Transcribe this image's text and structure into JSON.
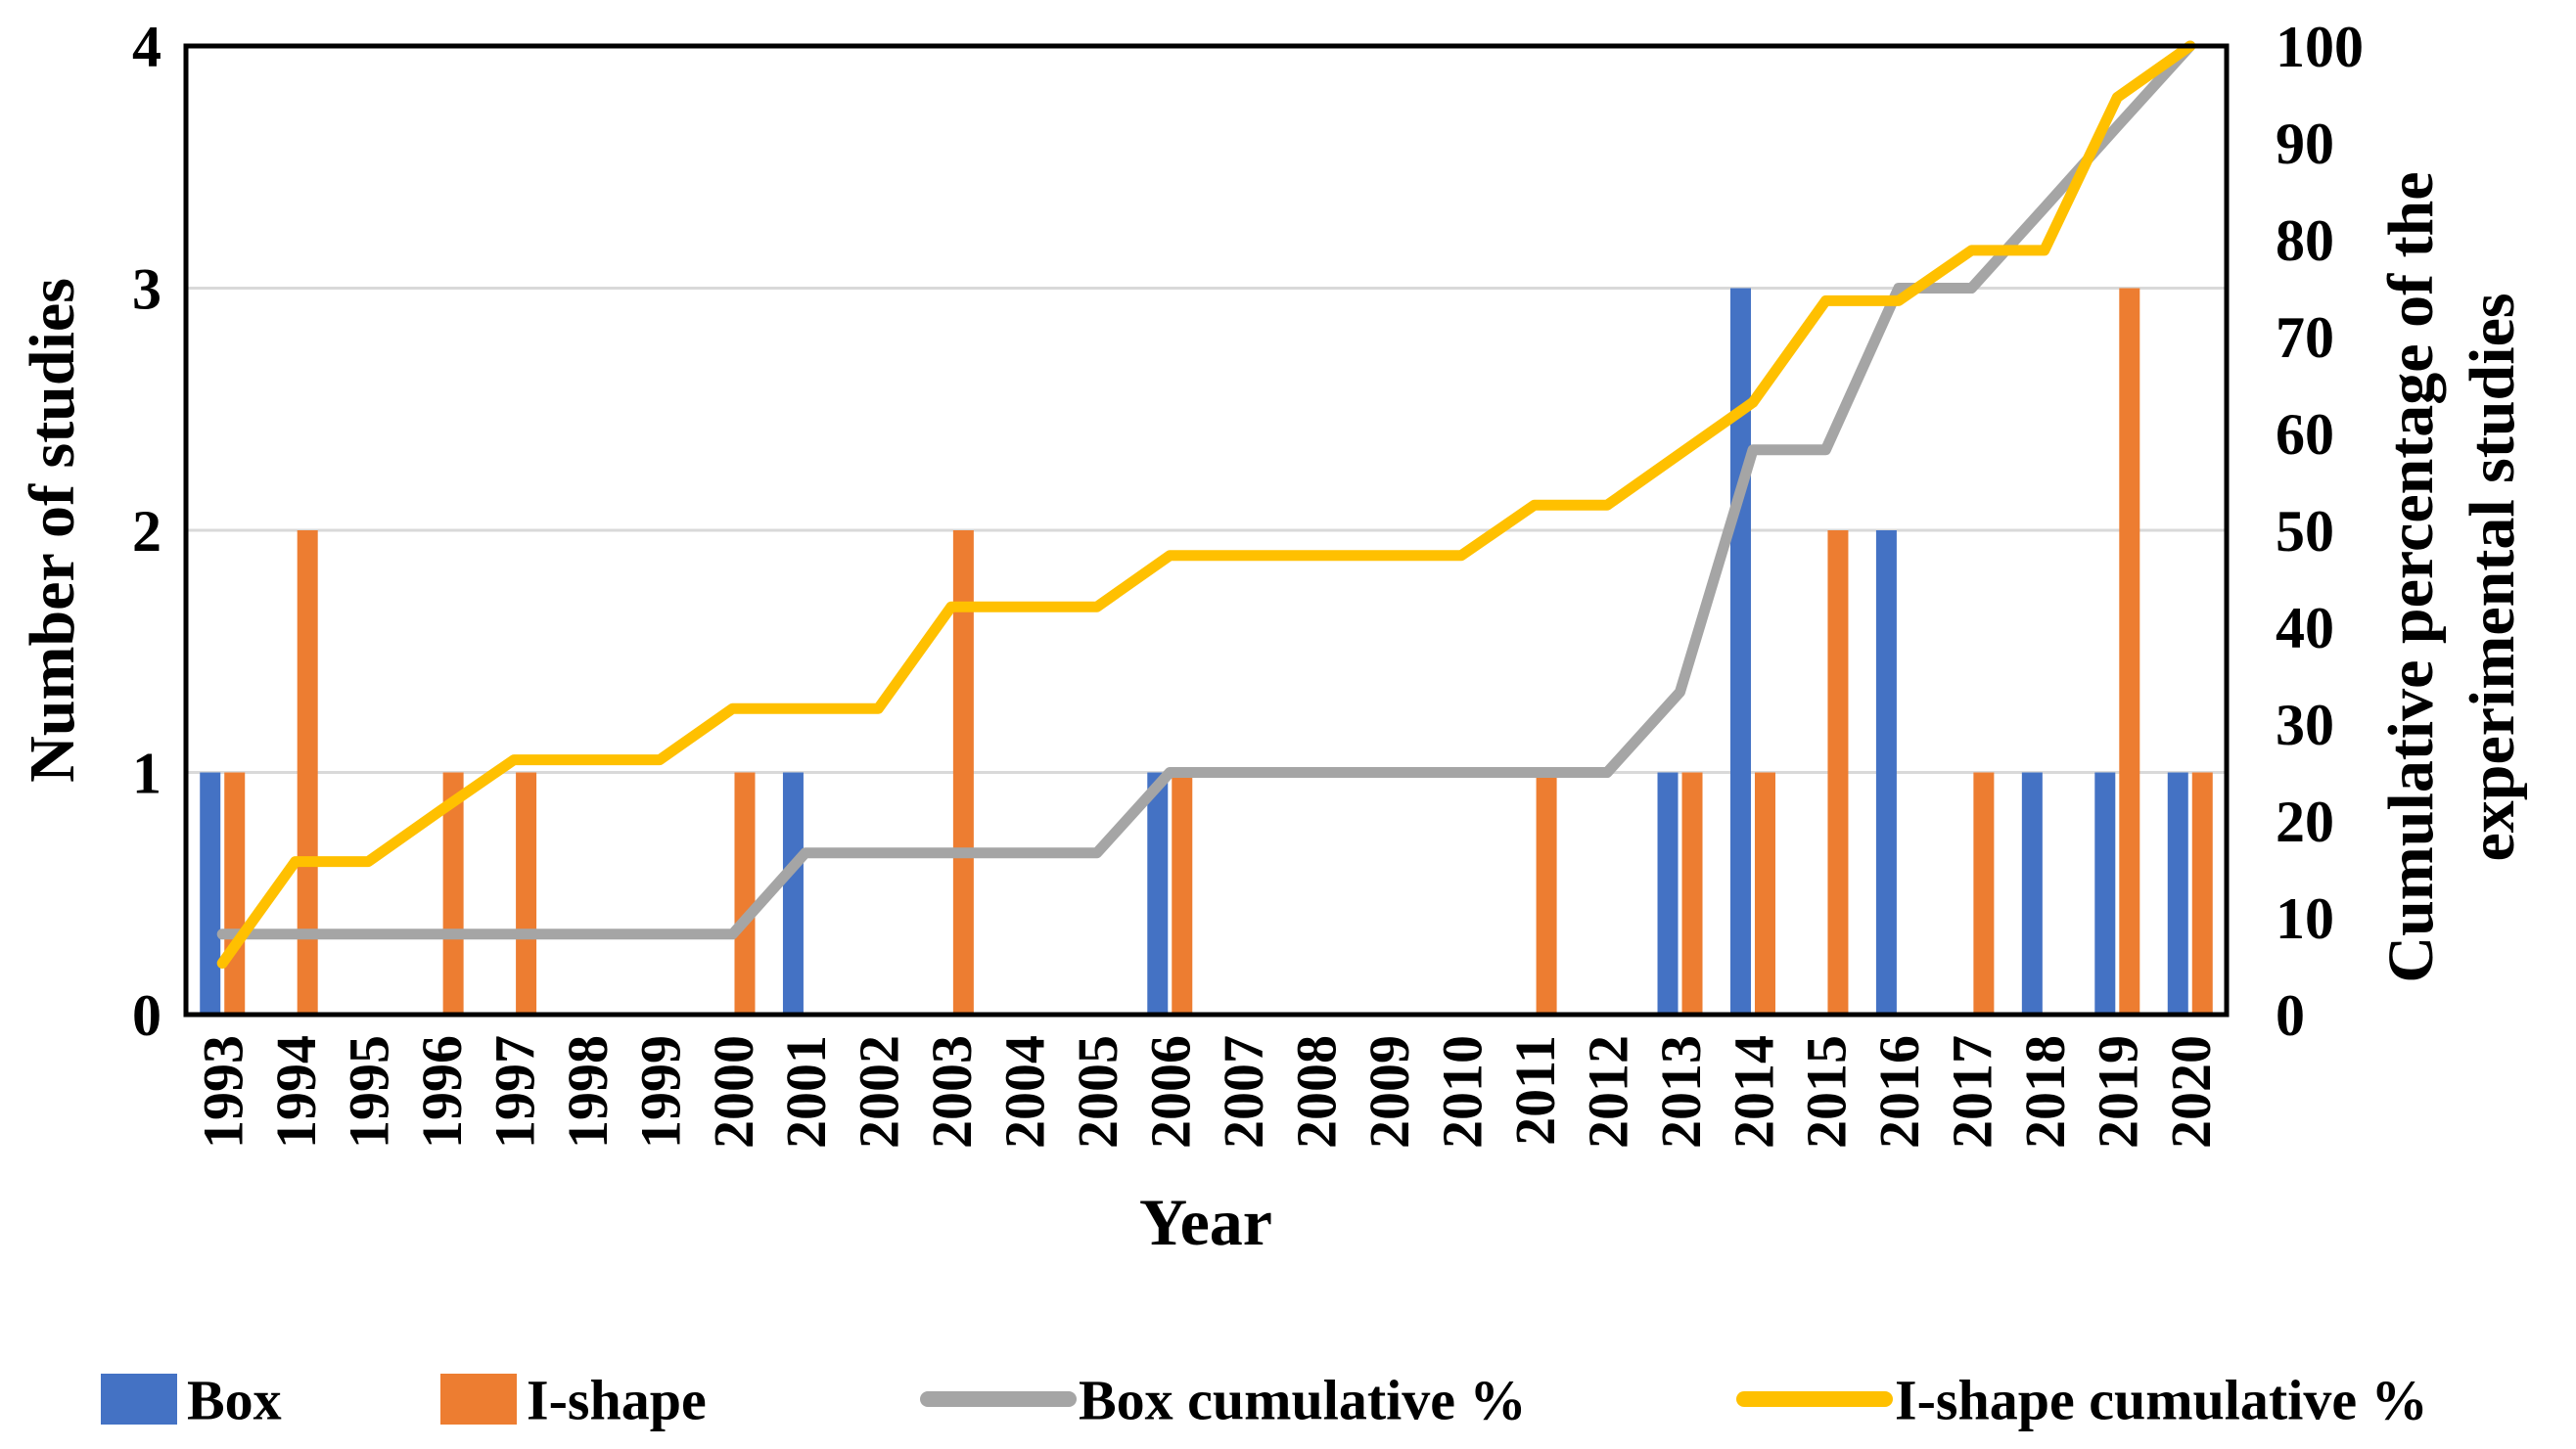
{
  "chart_data": {
    "type": "bar+line combo (Pareto)",
    "categories": [
      "1993",
      "1994",
      "1995",
      "1996",
      "1997",
      "1998",
      "1999",
      "2000",
      "2001",
      "2002",
      "2003",
      "2004",
      "2005",
      "2006",
      "2007",
      "2008",
      "2009",
      "2010",
      "2011",
      "2012",
      "2013",
      "2014",
      "2015",
      "2016",
      "2017",
      "2018",
      "2019",
      "2020"
    ],
    "series": [
      {
        "name": "Box",
        "type": "bar",
        "axis": "left",
        "color": "#4472C4",
        "values": [
          1,
          0,
          0,
          0,
          0,
          0,
          0,
          0,
          1,
          0,
          0,
          0,
          0,
          1,
          0,
          0,
          0,
          0,
          0,
          0,
          1,
          3,
          0,
          2,
          0,
          1,
          1,
          1
        ]
      },
      {
        "name": "I-shape",
        "type": "bar",
        "axis": "left",
        "color": "#ED7D31",
        "values": [
          1,
          2,
          0,
          1,
          1,
          0,
          0,
          1,
          0,
          0,
          2,
          0,
          0,
          1,
          0,
          0,
          0,
          0,
          1,
          0,
          1,
          1,
          2,
          0,
          1,
          0,
          3,
          1
        ]
      },
      {
        "name": "Box cumulative %",
        "type": "line",
        "axis": "right",
        "color": "#A5A5A5",
        "values": [
          8.3,
          8.3,
          8.3,
          8.3,
          8.3,
          8.3,
          8.3,
          8.3,
          16.7,
          16.7,
          16.7,
          16.7,
          16.7,
          25,
          25,
          25,
          25,
          25,
          25,
          25,
          33.3,
          58.3,
          58.3,
          75,
          75,
          83.3,
          91.7,
          100
        ]
      },
      {
        "name": "I-shape cumulative %",
        "type": "line",
        "axis": "right",
        "color": "#FFC000",
        "values": [
          5.3,
          15.8,
          15.8,
          21.1,
          26.3,
          26.3,
          26.3,
          31.6,
          31.6,
          31.6,
          42.1,
          42.1,
          42.1,
          47.4,
          47.4,
          47.4,
          47.4,
          47.4,
          52.6,
          52.6,
          57.9,
          63.2,
          73.7,
          73.7,
          78.9,
          78.9,
          94.7,
          100
        ]
      }
    ],
    "left_axis": {
      "label": "Number of studies",
      "min": 0,
      "max": 4,
      "ticks": [
        "0",
        "1",
        "2",
        "3",
        "4"
      ]
    },
    "right_axis": {
      "label_line1": "Cumulative percentage of the",
      "label_line2": "experimental studies",
      "min": 0,
      "max": 100,
      "ticks": [
        "0",
        "10",
        "20",
        "30",
        "40",
        "50",
        "60",
        "70",
        "80",
        "90",
        "100"
      ]
    },
    "x_axis": {
      "label": "Year"
    },
    "grid": {
      "color": "#D9D9D9",
      "values": [
        1,
        2,
        3
      ]
    },
    "axis_color": "#000000",
    "legend_position": "bottom"
  }
}
